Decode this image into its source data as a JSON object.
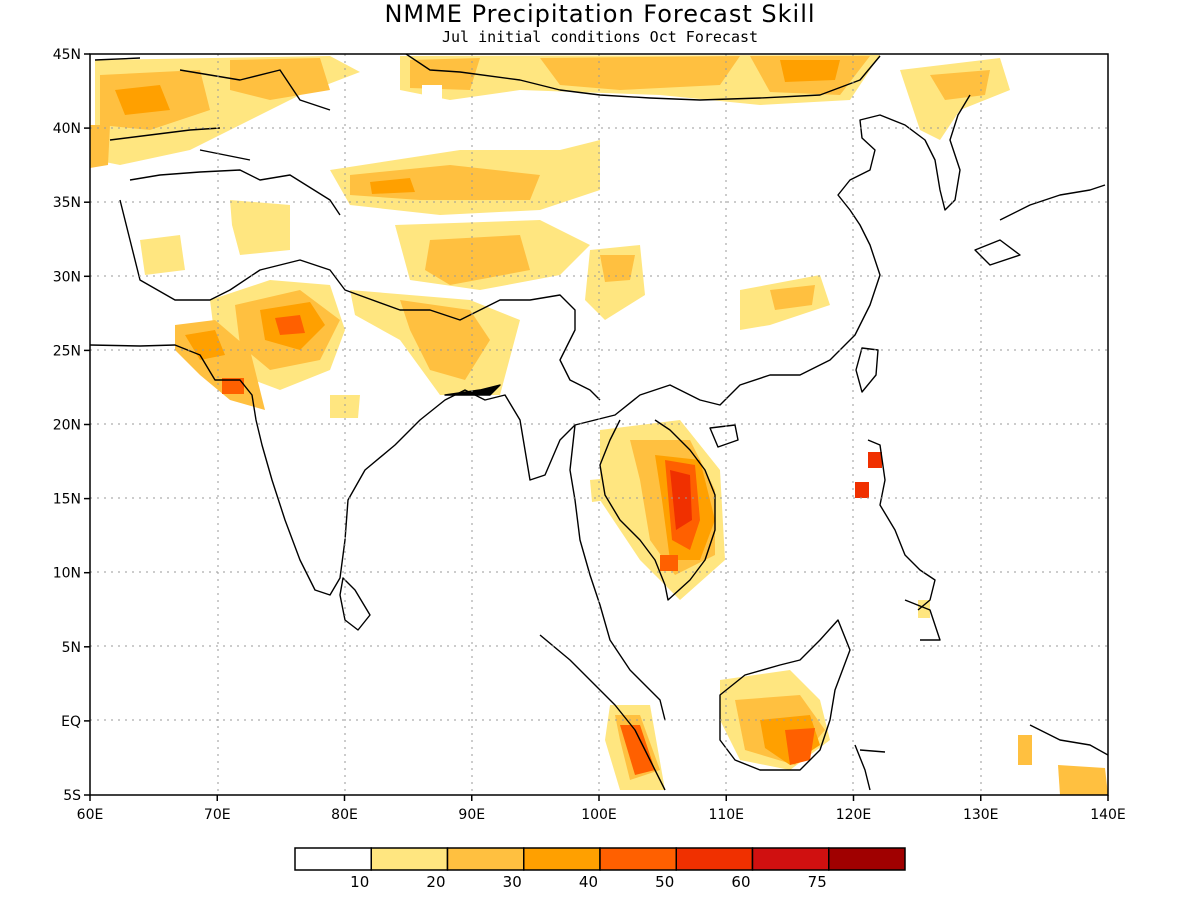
{
  "title": "NMME Precipitation Forecast Skill",
  "subtitle": "Jul initial conditions  Oct Forecast",
  "lat_labels": [
    "45N",
    "40N",
    "35N",
    "30N",
    "25N",
    "20N",
    "15N",
    "10N",
    "5N",
    "EQ",
    "5S"
  ],
  "lon_labels": [
    "60E",
    "70E",
    "80E",
    "90E",
    "100E",
    "110E",
    "120E",
    "130E",
    "140E"
  ],
  "colorbar": {
    "colors": [
      "#ffffff",
      "#ffe680",
      "#ffc040",
      "#ffa000",
      "#ff6000",
      "#f03000",
      "#d01010",
      "#a00000"
    ],
    "labels": [
      "10",
      "20",
      "30",
      "40",
      "50",
      "60",
      "75"
    ]
  },
  "colors": {
    "land_outline": "#000000",
    "grid": "#9a9a9a"
  }
}
